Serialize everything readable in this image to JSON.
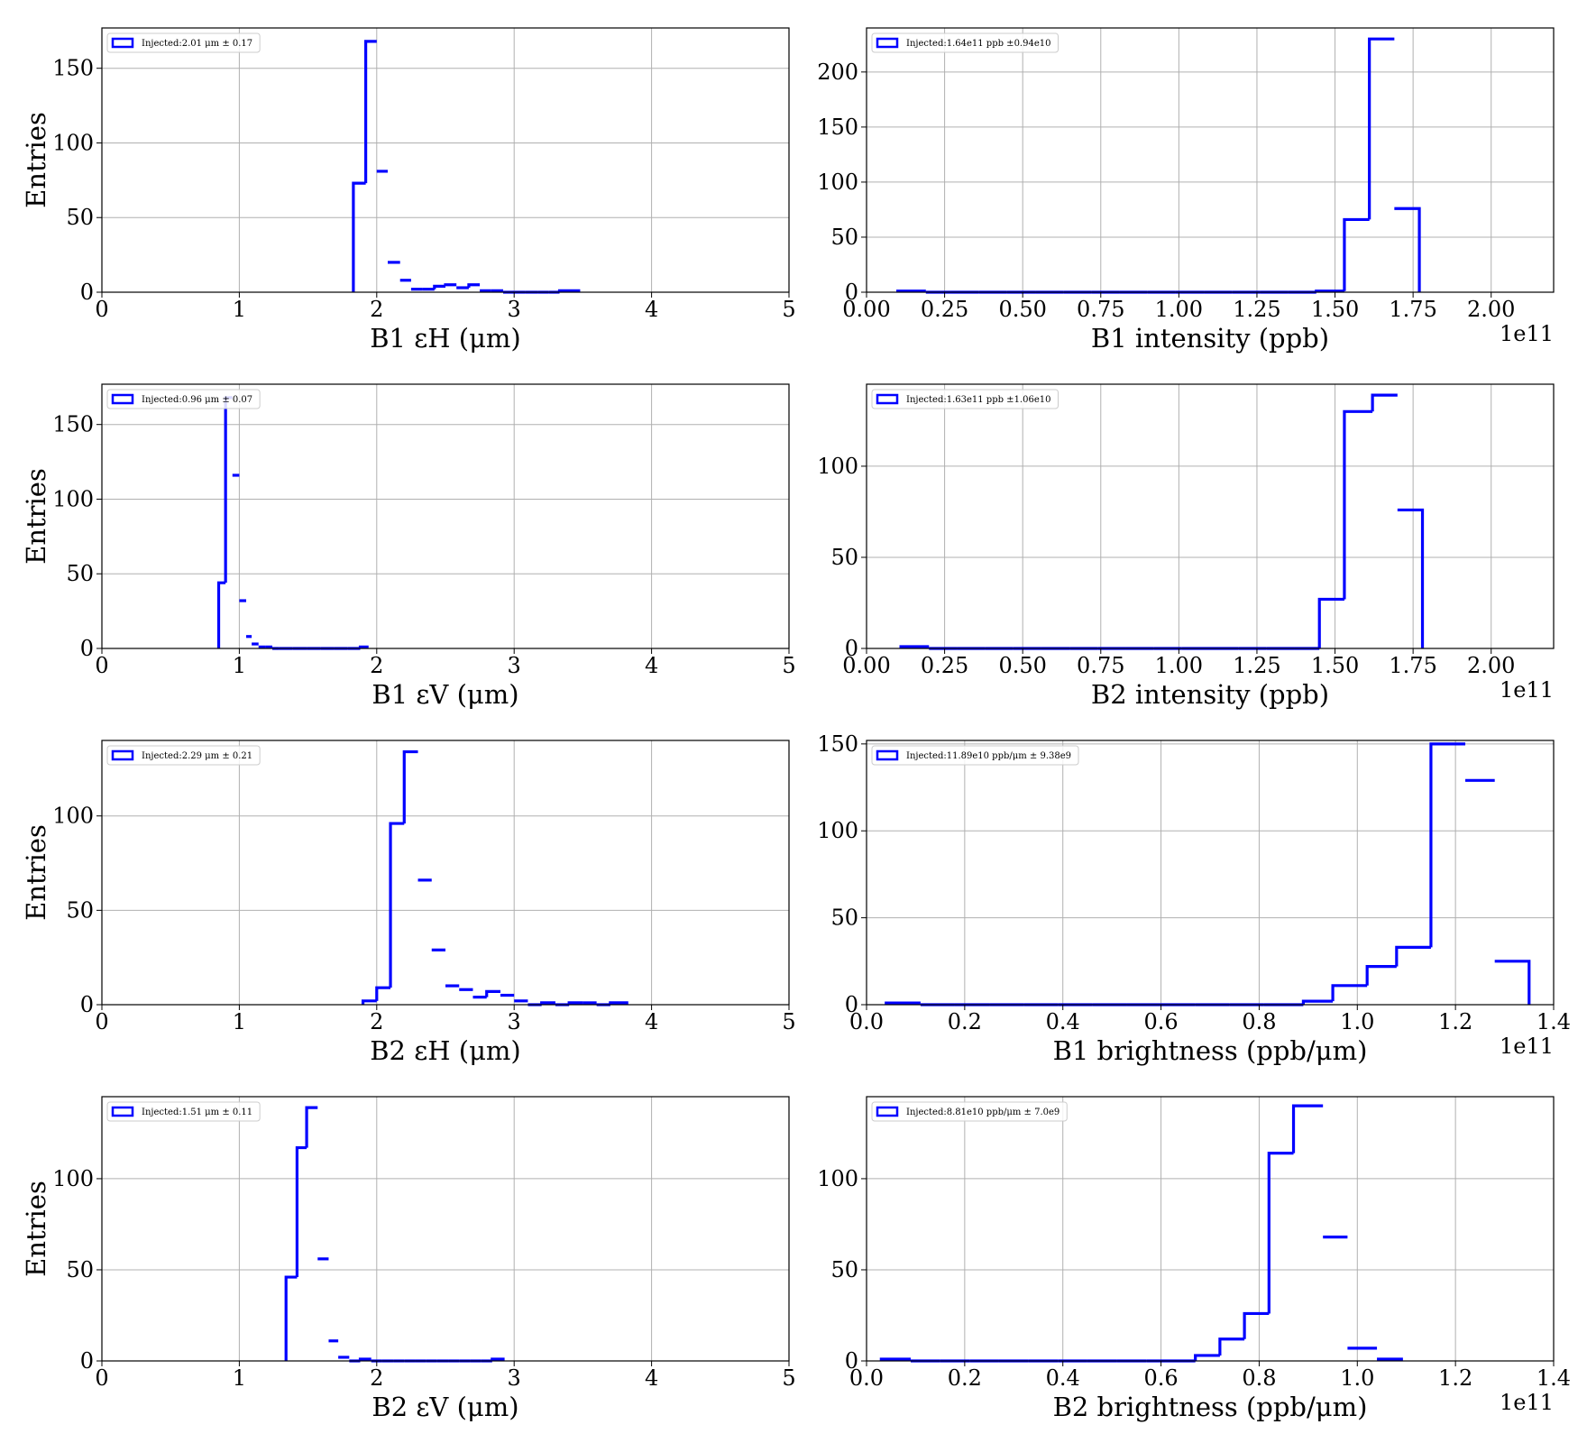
{
  "chart_data": [
    {
      "type": "histogram",
      "xlabel": "B1 εH (μm)",
      "ylabel": "Entries",
      "xlim": [
        0,
        5
      ],
      "ylim": [
        0,
        177
      ],
      "xticks": [
        0,
        1,
        2,
        3,
        4,
        5
      ],
      "xtick_labels": [
        "0",
        "1",
        "2",
        "3",
        "4",
        "5"
      ],
      "yticks": [
        0,
        50,
        100,
        150
      ],
      "ytick_labels": [
        "0",
        "50",
        "100",
        "150"
      ],
      "offset_label": "",
      "legend": "Injected:2.01 μm ± 0.17",
      "legend_position": "upper-left",
      "grid": true,
      "color": "#0000ff",
      "bin_edges": [
        1.83,
        1.92,
        2.0,
        2.08,
        2.17,
        2.25,
        2.33,
        2.42,
        2.5,
        2.58,
        2.67,
        2.75,
        2.83,
        2.92,
        3.0,
        3.08,
        3.17,
        3.25,
        3.33,
        3.47
      ],
      "counts": [
        73,
        168,
        81,
        20,
        8,
        2,
        2,
        4,
        5,
        3,
        5,
        1,
        1,
        0,
        0,
        0,
        0,
        0,
        1
      ]
    },
    {
      "type": "histogram",
      "xlabel": "B1 intensity (ppb)",
      "ylabel": "",
      "xlim": [
        0,
        2.2
      ],
      "ylim": [
        0,
        240
      ],
      "xticks": [
        0,
        0.25,
        0.5,
        0.75,
        1.0,
        1.25,
        1.5,
        1.75,
        2.0
      ],
      "xtick_labels": [
        "0.00",
        "0.25",
        "0.50",
        "0.75",
        "1.00",
        "1.25",
        "1.50",
        "1.75",
        "2.00"
      ],
      "yticks": [
        0,
        50,
        100,
        150,
        200
      ],
      "ytick_labels": [
        "0",
        "50",
        "100",
        "150",
        "200"
      ],
      "offset_label": "1e11",
      "legend": "Injected:1.64e11 ppb ±0.94e10",
      "legend_position": "upper-left",
      "grid": true,
      "color": "#0000ff",
      "bin_edges": [
        0.1,
        0.19,
        0.27,
        0.36,
        0.45,
        0.54,
        0.63,
        0.72,
        0.81,
        0.9,
        0.99,
        1.08,
        1.17,
        1.26,
        1.35,
        1.44,
        1.53,
        1.61,
        1.69,
        1.77
      ],
      "counts": [
        1,
        0,
        0,
        0,
        0,
        0,
        0,
        0,
        0,
        0,
        0,
        0,
        0,
        0,
        0,
        1,
        66,
        230,
        76
      ]
    },
    {
      "type": "histogram",
      "xlabel": "B1 εV (μm)",
      "ylabel": "Entries",
      "xlim": [
        0,
        5
      ],
      "ylim": [
        0,
        177
      ],
      "xticks": [
        0,
        1,
        2,
        3,
        4,
        5
      ],
      "xtick_labels": [
        "0",
        "1",
        "2",
        "3",
        "4",
        "5"
      ],
      "yticks": [
        0,
        50,
        100,
        150
      ],
      "ytick_labels": [
        "0",
        "50",
        "100",
        "150"
      ],
      "offset_label": "",
      "legend": "Injected:0.96 μm ± 0.07",
      "legend_position": "upper-left",
      "grid": true,
      "color": "#0000ff",
      "bin_edges": [
        0.85,
        0.9,
        0.95,
        1.0,
        1.05,
        1.09,
        1.14,
        1.19,
        1.24,
        1.29,
        1.39,
        1.49,
        1.59,
        1.69,
        1.79,
        1.88,
        1.93
      ],
      "counts": [
        44,
        168,
        116,
        32,
        8,
        3,
        1,
        1,
        0,
        0,
        0,
        0,
        0,
        0,
        0,
        1
      ]
    },
    {
      "type": "histogram",
      "xlabel": "B2 intensity (ppb)",
      "ylabel": "",
      "xlim": [
        0,
        2.2
      ],
      "ylim": [
        0,
        145
      ],
      "xticks": [
        0,
        0.25,
        0.5,
        0.75,
        1.0,
        1.25,
        1.5,
        1.75,
        2.0
      ],
      "xtick_labels": [
        "0.00",
        "0.25",
        "0.50",
        "0.75",
        "1.00",
        "1.25",
        "1.50",
        "1.75",
        "2.00"
      ],
      "yticks": [
        0,
        50,
        100
      ],
      "ytick_labels": [
        "0",
        "50",
        "100"
      ],
      "offset_label": "1e11",
      "legend": "Injected:1.63e11 ppb ±1.06e10",
      "legend_position": "upper-left",
      "grid": true,
      "color": "#0000ff",
      "bin_edges": [
        0.11,
        0.2,
        0.29,
        0.38,
        0.47,
        0.56,
        0.65,
        0.74,
        0.83,
        0.92,
        1.01,
        1.1,
        1.19,
        1.28,
        1.37,
        1.45,
        1.53,
        1.62,
        1.7,
        1.78
      ],
      "counts": [
        1,
        0,
        0,
        0,
        0,
        0,
        0,
        0,
        0,
        0,
        0,
        0,
        0,
        0,
        0,
        27,
        130,
        139,
        76
      ]
    },
    {
      "type": "histogram",
      "xlabel": "B2 εH (μm)",
      "ylabel": "Entries",
      "xlim": [
        0,
        5
      ],
      "ylim": [
        0,
        140
      ],
      "xticks": [
        0,
        1,
        2,
        3,
        4,
        5
      ],
      "xtick_labels": [
        "0",
        "1",
        "2",
        "3",
        "4",
        "5"
      ],
      "yticks": [
        0,
        50,
        100
      ],
      "ytick_labels": [
        "0",
        "50",
        "100"
      ],
      "offset_label": "",
      "legend": "Injected:2.29 μm ± 0.21",
      "legend_position": "upper-left",
      "grid": true,
      "color": "#0000ff",
      "bin_edges": [
        1.9,
        2.0,
        2.1,
        2.2,
        2.3,
        2.4,
        2.5,
        2.6,
        2.7,
        2.8,
        2.9,
        3.0,
        3.1,
        3.2,
        3.3,
        3.4,
        3.5,
        3.6,
        3.7,
        3.82
      ],
      "counts": [
        2,
        9,
        96,
        134,
        66,
        29,
        10,
        8,
        4,
        7,
        5,
        2,
        0,
        1,
        0,
        1,
        1,
        0,
        1
      ]
    },
    {
      "type": "histogram",
      "xlabel": "B1 brightness (ppb/μm)",
      "ylabel": "",
      "xlim": [
        0,
        1.4
      ],
      "ylim": [
        0,
        152
      ],
      "xticks": [
        0,
        0.2,
        0.4,
        0.6,
        0.8,
        1.0,
        1.2,
        1.4
      ],
      "xtick_labels": [
        "0.0",
        "0.2",
        "0.4",
        "0.6",
        "0.8",
        "1.0",
        "1.2",
        "1.4"
      ],
      "yticks": [
        0,
        50,
        100,
        150
      ],
      "ytick_labels": [
        "0",
        "50",
        "100",
        "150"
      ],
      "offset_label": "1e11",
      "legend": "Injected:11.89e10 ppb/μm ± 9.38e9",
      "legend_position": "upper-left",
      "grid": true,
      "color": "#0000ff",
      "bin_edges": [
        0.04,
        0.11,
        0.18,
        0.25,
        0.32,
        0.39,
        0.46,
        0.53,
        0.6,
        0.67,
        0.74,
        0.81,
        0.89,
        0.95,
        1.02,
        1.08,
        1.15,
        1.22,
        1.28,
        1.35
      ],
      "counts": [
        1,
        0,
        0,
        0,
        0,
        0,
        0,
        0,
        0,
        0,
        0,
        0,
        2,
        11,
        22,
        33,
        150,
        129,
        25
      ]
    },
    {
      "type": "histogram",
      "xlabel": "B2 εV (μm)",
      "ylabel": "Entries",
      "xlim": [
        0,
        5
      ],
      "ylim": [
        0,
        145
      ],
      "xticks": [
        0,
        1,
        2,
        3,
        4,
        5
      ],
      "xtick_labels": [
        "0",
        "1",
        "2",
        "3",
        "4",
        "5"
      ],
      "yticks": [
        0,
        50,
        100
      ],
      "ytick_labels": [
        "0",
        "50",
        "100"
      ],
      "offset_label": "",
      "legend": "Injected:1.51 μm ± 0.11",
      "legend_position": "upper-left",
      "grid": true,
      "color": "#0000ff",
      "bin_edges": [
        1.34,
        1.42,
        1.49,
        1.57,
        1.65,
        1.72,
        1.8,
        1.88,
        1.96,
        2.04,
        2.12,
        2.2,
        2.28,
        2.36,
        2.44,
        2.52,
        2.6,
        2.68,
        2.76,
        2.84,
        2.92
      ],
      "counts": [
        46,
        117,
        139,
        56,
        11,
        2,
        0,
        1,
        0,
        0,
        0,
        0,
        0,
        0,
        0,
        0,
        0,
        0,
        0,
        1
      ]
    },
    {
      "type": "histogram",
      "xlabel": "B2 brightness (ppb/μm)",
      "ylabel": "",
      "xlim": [
        0,
        1.4
      ],
      "ylim": [
        0,
        145
      ],
      "xticks": [
        0,
        0.2,
        0.4,
        0.6,
        0.8,
        1.0,
        1.2,
        1.4
      ],
      "xtick_labels": [
        "0.0",
        "0.2",
        "0.4",
        "0.6",
        "0.8",
        "1.0",
        "1.2",
        "1.4"
      ],
      "yticks": [
        0,
        50,
        100
      ],
      "ytick_labels": [
        "0",
        "50",
        "100"
      ],
      "offset_label": "1e11",
      "legend": "Injected:8.81e10 ppb/μm ± 7.0e9",
      "legend_position": "upper-left",
      "grid": true,
      "color": "#0000ff",
      "bin_edges": [
        0.03,
        0.09,
        0.15,
        0.21,
        0.27,
        0.33,
        0.39,
        0.45,
        0.51,
        0.57,
        0.67,
        0.72,
        0.77,
        0.82,
        0.87,
        0.93,
        0.98,
        1.04,
        1.09
      ],
      "counts": [
        1,
        0,
        0,
        0,
        0,
        0,
        0,
        0,
        0,
        0,
        3,
        12,
        26,
        114,
        140,
        68,
        7,
        1
      ]
    }
  ]
}
